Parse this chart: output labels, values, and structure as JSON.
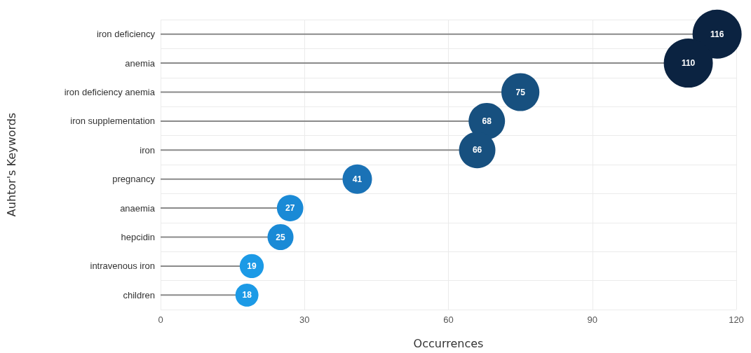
{
  "chart_data": {
    "type": "lollipop",
    "xlabel": "Occurrences",
    "ylabel": "Auhtor's Keywords",
    "orientation": "horizontal",
    "categories": [
      "iron deficiency",
      "anemia",
      "iron deficiency anemia",
      "iron supplementation",
      "iron",
      "pregnancy",
      "anaemia",
      "hepcidin",
      "intravenous iron",
      "children"
    ],
    "values": [
      116,
      110,
      75,
      68,
      66,
      41,
      27,
      25,
      19,
      18
    ],
    "colors": [
      "#0b2341",
      "#0b2341",
      "#17507f",
      "#17507f",
      "#17507f",
      "#1a72b6",
      "#1a8ad6",
      "#1a8ad6",
      "#1c9ae6",
      "#1c9ae6"
    ],
    "sizes": [
      1,
      1,
      0.6,
      0.55,
      0.55,
      0.36,
      0.29,
      0.28,
      0.24,
      0.22
    ],
    "xlim": [
      0,
      120
    ],
    "xticks": [
      0,
      30,
      60,
      90,
      120
    ],
    "grid": true,
    "data_labels": true
  }
}
